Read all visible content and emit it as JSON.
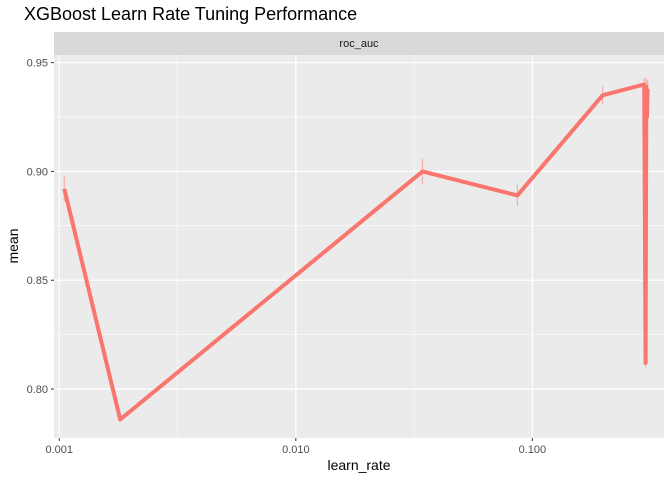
{
  "chart_data": {
    "type": "line",
    "title": "XGBoost Learn Rate Tuning Performance",
    "facet_label": "roc_auc",
    "xlabel": "learn_rate",
    "ylabel": "mean",
    "x_scale": "log10",
    "xlim": [
      0.00095,
      0.36
    ],
    "ylim": [
      0.7775,
      0.9535
    ],
    "x_ticks": [
      0.001,
      0.01,
      0.1
    ],
    "x_tick_labels": [
      "0.001",
      "0.010",
      "0.100"
    ],
    "y_ticks": [
      0.8,
      0.85,
      0.9,
      0.95
    ],
    "y_tick_labels": [
      "0.80",
      "0.85",
      "0.90",
      "0.95"
    ],
    "grid": true,
    "series": [
      {
        "color": "#F8766D",
        "points": [
          {
            "x": 0.00105,
            "y": 0.892,
            "err": 0.006
          },
          {
            "x": 0.00181,
            "y": 0.786,
            "err": 0.0
          },
          {
            "x": 0.0343,
            "y": 0.9,
            "err": 0.006
          },
          {
            "x": 0.0864,
            "y": 0.889,
            "err": 0.005
          },
          {
            "x": 0.198,
            "y": 0.935,
            "err": 0.004
          },
          {
            "x": 0.297,
            "y": 0.94,
            "err": 0.003
          },
          {
            "x": 0.301,
            "y": 0.812,
            "err": 0.002
          },
          {
            "x": 0.303,
            "y": 0.939,
            "err": 0.004
          },
          {
            "x": 0.305,
            "y": 0.925,
            "err": 0.004
          },
          {
            "x": 0.307,
            "y": 0.938,
            "err": 0.004
          }
        ]
      }
    ]
  }
}
